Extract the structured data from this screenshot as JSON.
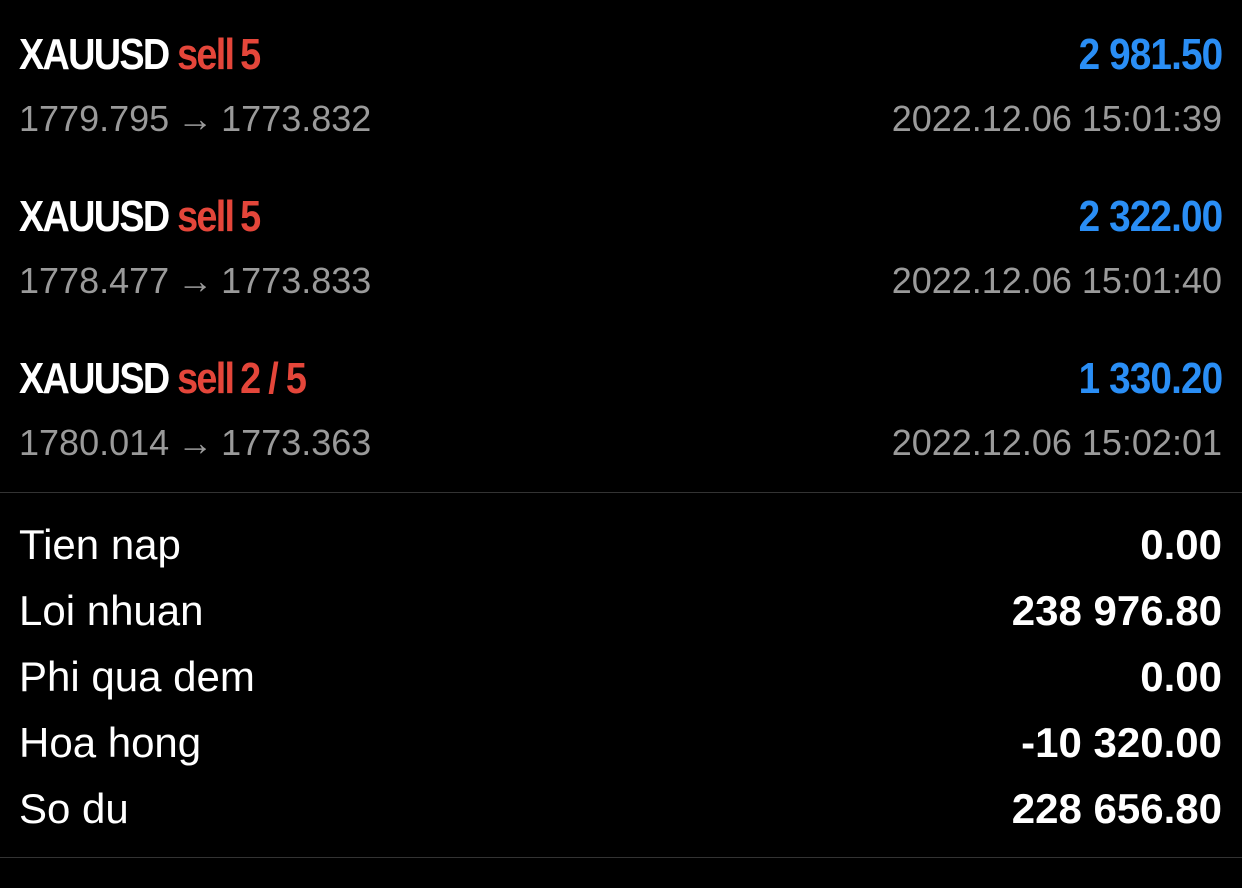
{
  "trades": [
    {
      "symbol": "XAUUSD",
      "side": "sell",
      "volume": "5",
      "profit": "2 981.50",
      "open_price": "1779.795",
      "arrow": "→",
      "close_price": "1773.832",
      "time": "2022.12.06 15:01:39"
    },
    {
      "symbol": "XAUUSD",
      "side": "sell",
      "volume": "5",
      "profit": "2 322.00",
      "open_price": "1778.477",
      "arrow": "→",
      "close_price": "1773.833",
      "time": "2022.12.06 15:01:40"
    },
    {
      "symbol": "XAUUSD",
      "side": "sell",
      "volume": "2 / 5",
      "profit": "1 330.20",
      "open_price": "1780.014",
      "arrow": "→",
      "close_price": "1773.363",
      "time": "2022.12.06 15:02:01"
    }
  ],
  "summary": [
    {
      "label": "Tien nap",
      "value": "0.00"
    },
    {
      "label": "Loi nhuan",
      "value": "238 976.80"
    },
    {
      "label": "Phi qua dem",
      "value": "0.00"
    },
    {
      "label": "Hoa hong",
      "value": "-10 320.00"
    },
    {
      "label": "So du",
      "value": "228 656.80"
    }
  ],
  "colors": {
    "background": "#000000",
    "sell": "#e4463a",
    "profit": "#2a8ef5",
    "secondary_text": "#9a9a9a",
    "divider": "#333333"
  }
}
